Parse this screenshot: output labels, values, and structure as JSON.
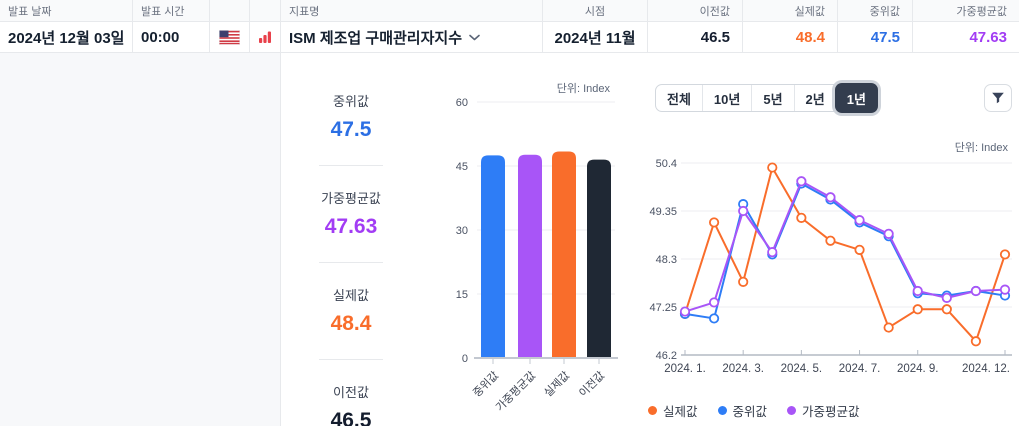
{
  "table": {
    "headers": {
      "release_date": "발표 날짜",
      "release_time": "발표 시간",
      "indicator": "지표명",
      "period": "시점",
      "previous": "이전값",
      "actual": "실제값",
      "median": "중위값",
      "weighted_avg": "가중평균값"
    },
    "row": {
      "release_date": "2024년 12월 03일",
      "release_time": "00:00",
      "indicator": "ISM 제조업 구매관리자지수",
      "period": "2024년 11월",
      "previous": "46.5",
      "actual": "48.4",
      "median": "47.5",
      "weighted_avg": "47.63"
    }
  },
  "colors": {
    "actual": "#f96d2b",
    "median": "#2c6fe4",
    "weighted_avg": "#a23cf4",
    "previous": "#141d2e"
  },
  "stats": [
    {
      "label": "중위값",
      "value": "47.5",
      "color": "#2c6fe4"
    },
    {
      "label": "가중평균값",
      "value": "47.63",
      "color": "#a23cf4"
    },
    {
      "label": "실제값",
      "value": "48.4",
      "color": "#f96d2b"
    },
    {
      "label": "이전값",
      "value": "46.5",
      "color": "#141d2e"
    }
  ],
  "controls": {
    "ranges": [
      "전체",
      "10년",
      "5년",
      "2년",
      "1년"
    ],
    "selected_range": "1년"
  },
  "chart_data": [
    {
      "type": "bar",
      "unit": "단위: Index",
      "categories": [
        "중위값",
        "가중평균값",
        "실제값",
        "이전값"
      ],
      "values": [
        47.5,
        47.63,
        48.4,
        46.5
      ],
      "colors": [
        "#2e7df6",
        "#a855f7",
        "#f96d2b",
        "#1f2834"
      ],
      "ylim": [
        0,
        60
      ],
      "yticks": [
        0,
        15,
        30,
        45,
        60
      ],
      "grid": true,
      "legend": "none"
    },
    {
      "type": "line",
      "unit": "단위: Index",
      "x_count": 12,
      "x_tick_labels": [
        "2024. 1.",
        "2024. 3.",
        "2024. 5.",
        "2024. 7.",
        "2024. 9.",
        "2024. 12."
      ],
      "x_tick_indices": [
        0,
        2,
        4,
        6,
        8,
        11
      ],
      "series": [
        {
          "name": "실제값",
          "color": "#f96d2b",
          "values": [
            47.1,
            49.1,
            47.8,
            50.3,
            49.2,
            48.7,
            48.5,
            46.8,
            47.2,
            47.2,
            46.5,
            48.4
          ]
        },
        {
          "name": "중위값",
          "color": "#2e7df6",
          "values": [
            47.1,
            47.0,
            49.5,
            48.4,
            49.95,
            49.6,
            49.1,
            48.8,
            47.55,
            47.5,
            47.6,
            47.5
          ]
        },
        {
          "name": "가중평균값",
          "color": "#a855f7",
          "values": [
            47.15,
            47.35,
            49.35,
            48.45,
            50.0,
            49.65,
            49.15,
            48.85,
            47.6,
            47.45,
            47.6,
            47.63
          ]
        }
      ],
      "ylim": [
        46.2,
        50.4
      ],
      "yticks": [
        46.2,
        47.25,
        48.3,
        49.35,
        50.4
      ],
      "grid": true,
      "legend_position": "bottom-left",
      "point_style": "open-circle"
    }
  ]
}
